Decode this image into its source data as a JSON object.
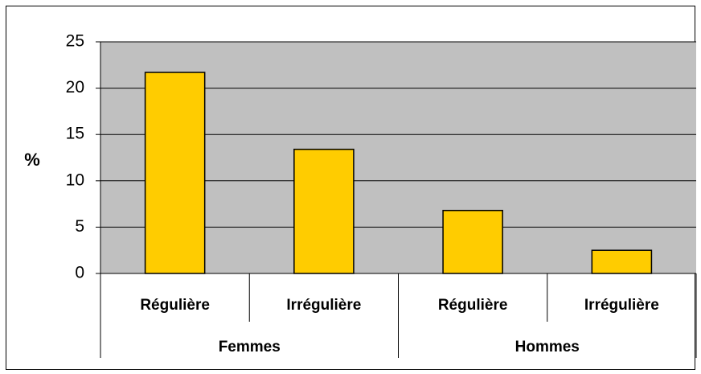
{
  "chart_data": {
    "type": "bar",
    "ylabel": "%",
    "groups": [
      {
        "label": "Femmes",
        "categories": [
          "Régulière",
          "Irrégulière"
        ],
        "values": [
          21.7,
          13.4
        ]
      },
      {
        "label": "Hommes",
        "categories": [
          "Régulière",
          "Irrégulière"
        ],
        "values": [
          6.8,
          2.5
        ]
      }
    ],
    "color": "#ffcc00",
    "ylim": [
      0,
      25
    ],
    "yticks": [
      0,
      5,
      10,
      15,
      20,
      25
    ],
    "grid": true
  }
}
